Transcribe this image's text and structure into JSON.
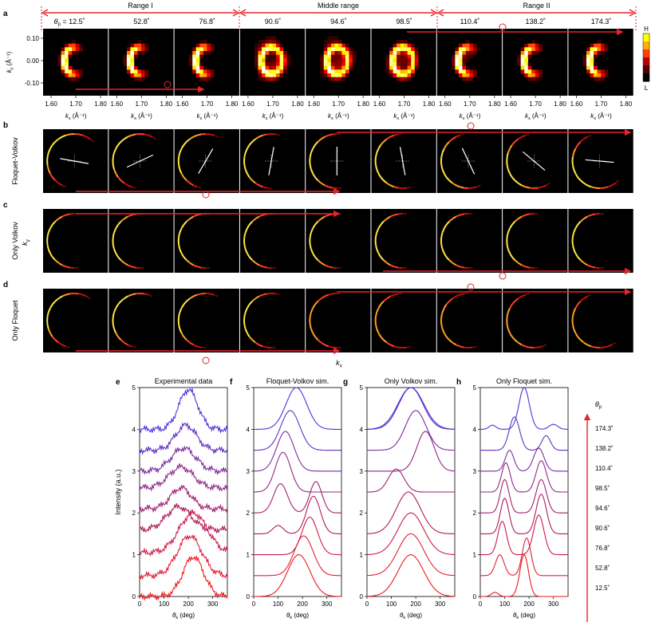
{
  "panel_labels": [
    "a",
    "b",
    "c",
    "d",
    "e",
    "f",
    "g",
    "h"
  ],
  "ranges": [
    {
      "label": "Range I"
    },
    {
      "label": "Middle range"
    },
    {
      "label": "Range II"
    }
  ],
  "theta_p_symbol": "θ",
  "theta_p_sub": "p",
  "angles": [
    "12.5˚",
    "52.8˚",
    "76.8˚",
    "90.6˚",
    "94.6˚",
    "98.5˚",
    "110.4˚",
    "138.2˚",
    "174.3˚"
  ],
  "angle_prefix": " = ",
  "row_a": {
    "ky_label": "k",
    "ky_sub": "y",
    "ky_unit": " (Å⁻¹)",
    "yticks": [
      "0.10",
      "0.00",
      "-0.10"
    ],
    "xticks": [
      "1.60",
      "1.70",
      "1.80"
    ],
    "kx_label": "k",
    "kx_sub": "x",
    "kx_unit": " (Å⁻¹)",
    "colorbar_high": "H",
    "colorbar_low": "L",
    "cb_colors": [
      "#ffff00",
      "#ffb000",
      "#ff4000",
      "#c00000",
      "#500000",
      "#000000"
    ]
  },
  "row_labels": [
    "Floquet-Volkov",
    "Only Volkov",
    "Only Floquet"
  ],
  "row_cd_ky": "k",
  "row_cd_ky_sub": "y",
  "row_d_kx": "k",
  "row_d_kx_sub": "x",
  "arrow_color": "#e8232a",
  "chart_data": [
    {
      "type": "line",
      "title": "Experimental data",
      "ylabel": "Intensity (a.u.)",
      "xlabel": "θ",
      "xlabel_sub": "k",
      "xlabel_unit": " (deg)",
      "xticks": [
        "0",
        "100",
        "200",
        "300"
      ],
      "yticks": [
        "0",
        "1",
        "2",
        "3",
        "4",
        "5"
      ],
      "xlim": [
        0,
        360
      ],
      "ylim": [
        0,
        5
      ],
      "offsets": [
        0,
        0.5,
        1.05,
        1.6,
        2.1,
        2.6,
        3.0,
        3.5,
        4.0
      ],
      "series": [
        {
          "values_peaks": [
            [
              220,
              0.95,
              60
            ]
          ]
        },
        {
          "values_peaks": [
            [
              205,
              0.95,
              70
            ]
          ]
        },
        {
          "values_peaks": [
            [
              220,
              0.95,
              80
            ]
          ]
        },
        {
          "values_peaks": [
            [
              160,
              0.55,
              70
            ]
          ]
        },
        {
          "values_peaks": [
            [
              170,
              0.5,
              60
            ]
          ]
        },
        {
          "values_peaks": [
            [
              170,
              0.5,
              70
            ]
          ]
        },
        {
          "values_peaks": [
            [
              180,
              0.55,
              70
            ]
          ]
        },
        {
          "values_peaks": [
            [
              190,
              0.6,
              60
            ]
          ]
        },
        {
          "values_peaks": [
            [
              200,
              0.95,
              55
            ]
          ]
        }
      ]
    },
    {
      "type": "line",
      "title": "Floquet-Volkov sim.",
      "xlabel": "θ",
      "xlabel_sub": "k",
      "xlabel_unit": " (deg)",
      "xticks": [
        "0",
        "100",
        "200",
        "300"
      ],
      "yticks": [
        "0",
        "1",
        "2",
        "3",
        "4",
        "5"
      ],
      "xlim": [
        0,
        360
      ],
      "ylim": [
        0,
        5
      ],
      "offsets": [
        0,
        0.5,
        1.0,
        1.5,
        2.0,
        2.5,
        3.0,
        3.5,
        4.0
      ],
      "series": [
        {
          "values_peaks": [
            [
              185,
              1.0,
              65
            ]
          ]
        },
        {
          "values_peaks": [
            [
              205,
              0.95,
              55
            ]
          ]
        },
        {
          "values_peaks": [
            [
              230,
              0.9,
              45
            ]
          ]
        },
        {
          "values_peaks": [
            [
              100,
              0.2,
              30
            ],
            [
              245,
              0.9,
              40
            ]
          ]
        },
        {
          "values_peaks": [
            [
              110,
              0.7,
              40
            ],
            [
              255,
              0.75,
              35
            ]
          ]
        },
        {
          "values_peaks": [
            [
              120,
              0.95,
              45
            ]
          ]
        },
        {
          "values_peaks": [
            [
              130,
              0.95,
              50
            ]
          ]
        },
        {
          "values_peaks": [
            [
              150,
              0.95,
              55
            ]
          ]
        },
        {
          "values_peaks": [
            [
              175,
              1.0,
              60
            ]
          ]
        }
      ]
    },
    {
      "type": "line",
      "title": "Only Volkov sim.",
      "xlabel": "θ",
      "xlabel_sub": "k",
      "xlabel_unit": " (deg)",
      "xticks": [
        "0",
        "100",
        "200",
        "300"
      ],
      "yticks": [
        "0",
        "1",
        "2",
        "3",
        "4",
        "5"
      ],
      "xlim": [
        0,
        360
      ],
      "ylim": [
        0,
        5
      ],
      "offsets": [
        0,
        0.5,
        1.0,
        1.5,
        2.5,
        3.0,
        3.5,
        4.0,
        4.0
      ],
      "series": [
        {
          "values_peaks": [
            [
              180,
              1.0,
              75
            ]
          ]
        },
        {
          "values_peaks": [
            [
              180,
              1.0,
              75
            ]
          ]
        },
        {
          "values_peaks": [
            [
              180,
              1.0,
              75
            ]
          ]
        },
        {
          "values_peaks": [
            [
              170,
              1.0,
              70
            ]
          ]
        },
        {
          "values_peaks": [
            [
              120,
              0.55,
              45
            ]
          ]
        },
        {
          "values_peaks": [
            [
              240,
              0.95,
              50
            ]
          ]
        },
        {
          "values_peaks": [
            [
              200,
              0.95,
              60
            ]
          ]
        },
        {
          "values_peaks": [
            [
              180,
              1.0,
              70
            ]
          ]
        },
        {
          "values_peaks": [
            [
              180,
              1.0,
              75
            ]
          ]
        }
      ]
    },
    {
      "type": "line",
      "title": "Only Floquet sim.",
      "xlabel": "θ",
      "xlabel_sub": "k",
      "xlabel_unit": " (deg)",
      "xticks": [
        "0",
        "100",
        "200",
        "300"
      ],
      "yticks": [
        "0",
        "1",
        "2",
        "3",
        "4",
        "5"
      ],
      "xlim": [
        0,
        360
      ],
      "ylim": [
        0,
        5
      ],
      "legend_title": "θ",
      "legend_title_sub": "p",
      "legend": [
        "174.3˚",
        "138.2˚",
        "110.4˚",
        "98.5˚",
        "94.6˚",
        "90.6˚",
        "76.8˚",
        "52.8˚",
        "12.5˚"
      ],
      "offsets": [
        0,
        0.5,
        1.0,
        1.5,
        2.0,
        2.5,
        3.0,
        3.5,
        4.0
      ],
      "series": [
        {
          "values_peaks": [
            [
              60,
              0.1,
              20
            ],
            [
              180,
              1.0,
              25
            ]
          ]
        },
        {
          "values_peaks": [
            [
              80,
              0.5,
              25
            ],
            [
              190,
              0.9,
              25
            ]
          ]
        },
        {
          "values_peaks": [
            [
              90,
              0.8,
              25
            ],
            [
              240,
              0.95,
              30
            ]
          ]
        },
        {
          "values_peaks": [
            [
              100,
              0.85,
              25
            ],
            [
              250,
              0.95,
              30
            ]
          ]
        },
        {
          "values_peaks": [
            [
              100,
              0.8,
              25
            ],
            [
              250,
              0.8,
              30
            ]
          ]
        },
        {
          "values_peaks": [
            [
              105,
              0.7,
              25
            ],
            [
              250,
              0.75,
              30
            ]
          ]
        },
        {
          "values_peaks": [
            [
              120,
              0.5,
              25
            ],
            [
              240,
              0.55,
              30
            ]
          ]
        },
        {
          "values_peaks": [
            [
              140,
              0.8,
              30
            ],
            [
              270,
              0.35,
              25
            ]
          ]
        },
        {
          "values_peaks": [
            [
              50,
              0.1,
              20
            ],
            [
              180,
              1.0,
              30
            ],
            [
              300,
              0.12,
              25
            ]
          ]
        }
      ]
    }
  ]
}
